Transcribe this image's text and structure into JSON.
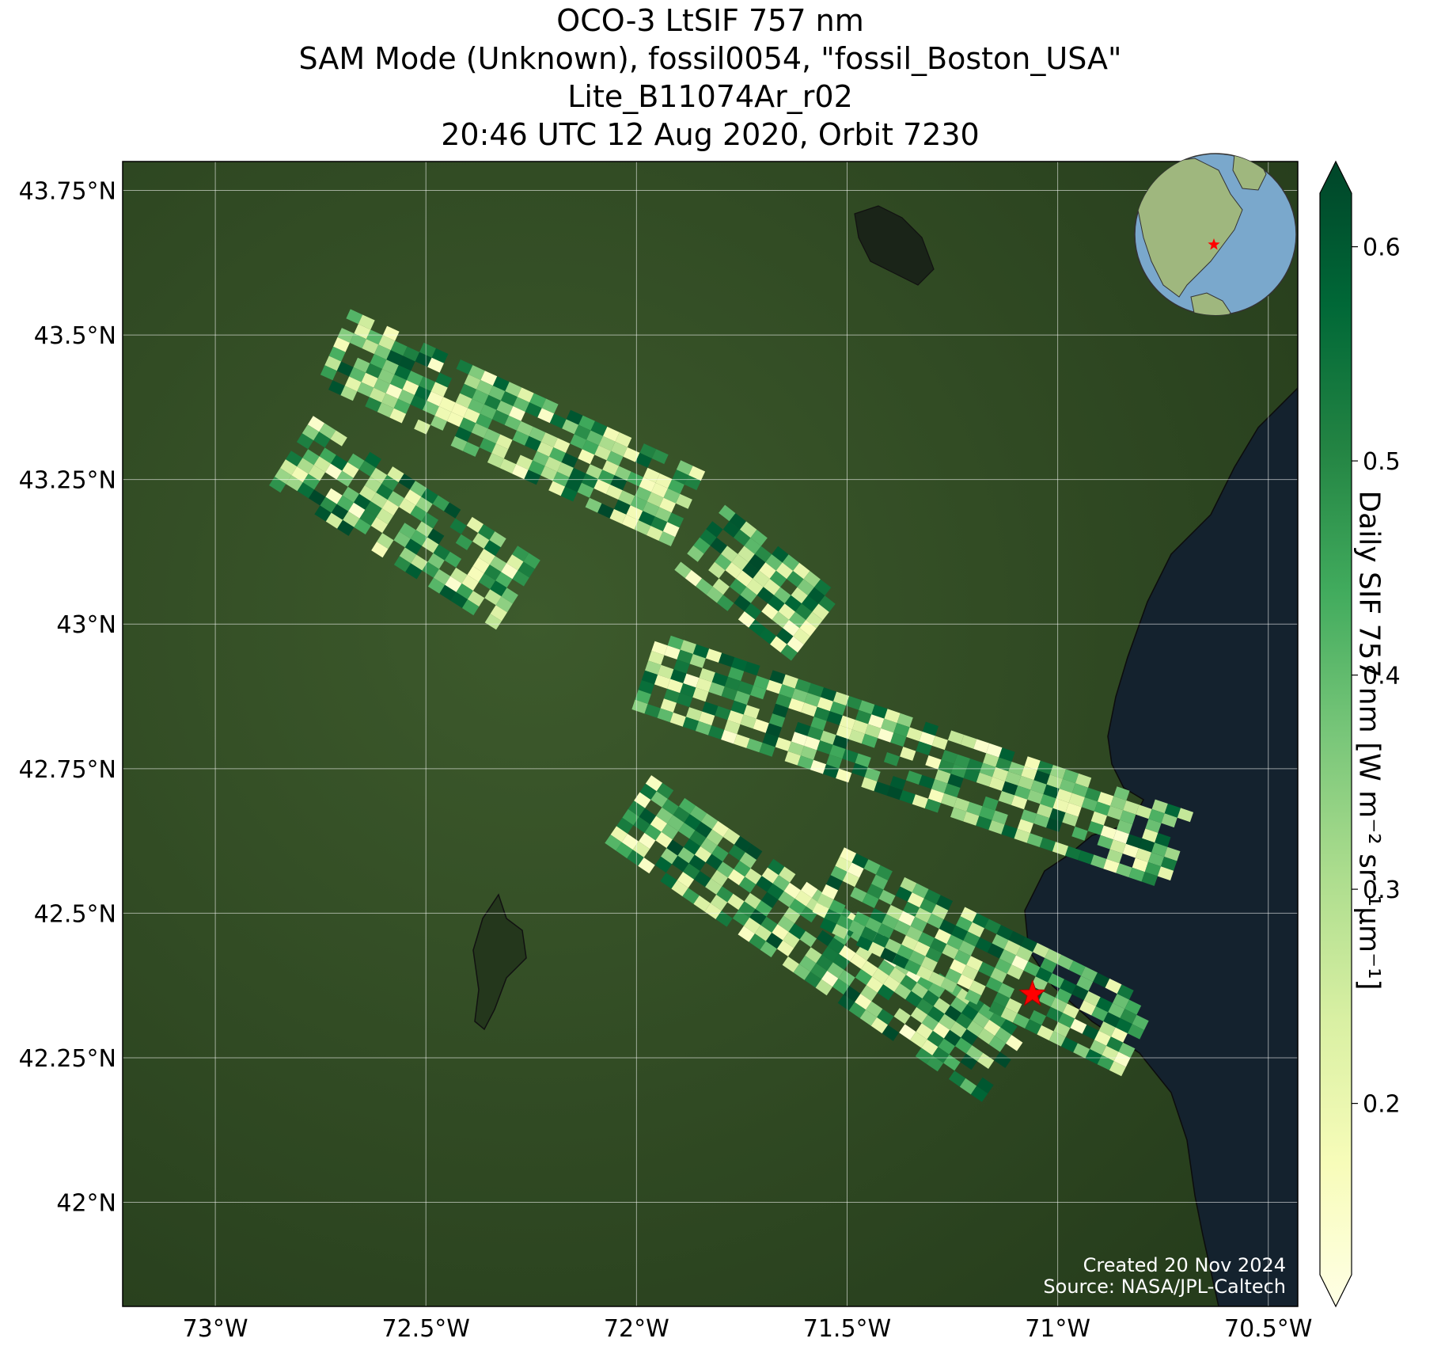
{
  "title": {
    "line1": "OCO-3 LtSIF 757 nm",
    "line2": "SAM Mode (Unknown), fossil0054, \"fossil_Boston_USA\"",
    "line3": "Lite_B11074Ar_r02",
    "line4": "20:46 UTC 12 Aug 2020, Orbit 7230"
  },
  "map": {
    "lon_range": [
      -73.22,
      -70.43
    ],
    "lat_range": [
      41.82,
      43.8
    ],
    "lon_ticks": [
      {
        "value": -73.0,
        "label": "73°W"
      },
      {
        "value": -72.5,
        "label": "72.5°W"
      },
      {
        "value": -72.0,
        "label": "72°W"
      },
      {
        "value": -71.5,
        "label": "71.5°W"
      },
      {
        "value": -71.0,
        "label": "71°W"
      },
      {
        "value": -70.5,
        "label": "70.5°W"
      }
    ],
    "lat_ticks": [
      {
        "value": 43.75,
        "label": "43.75°N"
      },
      {
        "value": 43.5,
        "label": "43.5°N"
      },
      {
        "value": 43.25,
        "label": "43.25°N"
      },
      {
        "value": 43.0,
        "label": "43°N"
      },
      {
        "value": 42.75,
        "label": "42.75°N"
      },
      {
        "value": 42.5,
        "label": "42.5°N"
      },
      {
        "value": 42.25,
        "label": "42.25°N"
      },
      {
        "value": 42.0,
        "label": "42°N"
      }
    ],
    "target_site": {
      "name": "fossil_Boston_USA",
      "lon": -71.06,
      "lat": 42.36,
      "marker_color": "#ff0000"
    },
    "background": {
      "land_color": "#2f4a22",
      "ocean_color": "#14222e"
    }
  },
  "colorbar": {
    "label": "Daily SIF 757 nm [W m⁻² sr⁻¹µm⁻¹]",
    "min": 0.12,
    "max": 0.625,
    "ticks": [
      {
        "value": 0.2,
        "label": "0.2"
      },
      {
        "value": 0.3,
        "label": "0.3"
      },
      {
        "value": 0.4,
        "label": "0.4"
      },
      {
        "value": 0.5,
        "label": "0.5"
      },
      {
        "value": 0.6,
        "label": "0.6"
      }
    ],
    "colormap": "YlGn",
    "colors": [
      "#ffffe5",
      "#f7fcb9",
      "#d9f0a3",
      "#addd8e",
      "#78c679",
      "#41ab5d",
      "#238443",
      "#006837",
      "#004529"
    ]
  },
  "inset_globe": {
    "ocean_color": "#7aa8cc",
    "land_color": "#9fb77e",
    "marker_color": "#ff0000"
  },
  "credits": {
    "created": "Created 20 Nov 2024",
    "source": "Source: NASA/JPL-Caltech"
  },
  "chart_data": {
    "type": "heatmap",
    "title": "OCO-3 LtSIF 757 nm",
    "variable": "Daily SIF 757 nm",
    "units": "W m⁻² sr⁻¹µm⁻¹",
    "value_range": [
      0.12,
      0.625
    ],
    "swaths": [
      {
        "lon_start": -72.72,
        "lat_start": 43.48,
        "lon_end": -71.85,
        "lat_end": 43.19,
        "value_range": [
          0.15,
          0.62
        ]
      },
      {
        "lon_start": -72.82,
        "lat_start": 43.3,
        "lon_end": -72.28,
        "lat_end": 43.05,
        "value_range": [
          0.15,
          0.62
        ]
      },
      {
        "lon_start": -71.85,
        "lat_start": 43.15,
        "lon_end": -71.55,
        "lat_end": 42.98,
        "value_range": [
          0.15,
          0.62
        ]
      },
      {
        "lon_start": -71.98,
        "lat_start": 42.92,
        "lon_end": -70.68,
        "lat_end": 42.6,
        "value_range": [
          0.15,
          0.62
        ]
      },
      {
        "lon_start": -72.02,
        "lat_start": 42.68,
        "lon_end": -71.1,
        "lat_end": 42.22,
        "value_range": [
          0.15,
          0.62
        ]
      },
      {
        "lon_start": -71.55,
        "lat_start": 42.55,
        "lon_end": -70.8,
        "lat_end": 42.28,
        "value_range": [
          0.15,
          0.62
        ]
      }
    ]
  }
}
